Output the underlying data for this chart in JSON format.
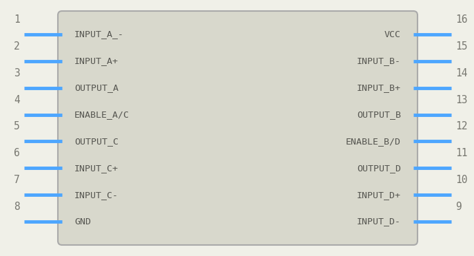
{
  "bg_color": "#f0f0e8",
  "body_color": "#d8d8cc",
  "body_edge_color": "#aaaaaa",
  "pin_color": "#4da6ff",
  "text_color": "#555550",
  "num_color": "#777770",
  "left_pins": [
    {
      "num": 1,
      "label": "INPUT_A_-"
    },
    {
      "num": 2,
      "label": "INPUT_A+"
    },
    {
      "num": 3,
      "label": "OUTPUT_A"
    },
    {
      "num": 4,
      "label": "ENABLE_A/C"
    },
    {
      "num": 5,
      "label": "OUTPUT_C"
    },
    {
      "num": 6,
      "label": "INPUT_C+"
    },
    {
      "num": 7,
      "label": "INPUT_C-"
    },
    {
      "num": 8,
      "label": "GND"
    }
  ],
  "right_pins": [
    {
      "num": 16,
      "label": "VCC"
    },
    {
      "num": 15,
      "label": "INPUT_B-"
    },
    {
      "num": 14,
      "label": "INPUT_B+"
    },
    {
      "num": 13,
      "label": "OUTPUT_B"
    },
    {
      "num": 12,
      "label": "ENABLE_B/D"
    },
    {
      "num": 11,
      "label": "OUTPUT_D"
    },
    {
      "num": 10,
      "label": "INPUT_D+"
    },
    {
      "num": 9,
      "label": "INPUT_D-"
    }
  ],
  "figsize": [
    6.88,
    3.72
  ],
  "dpi": 100
}
